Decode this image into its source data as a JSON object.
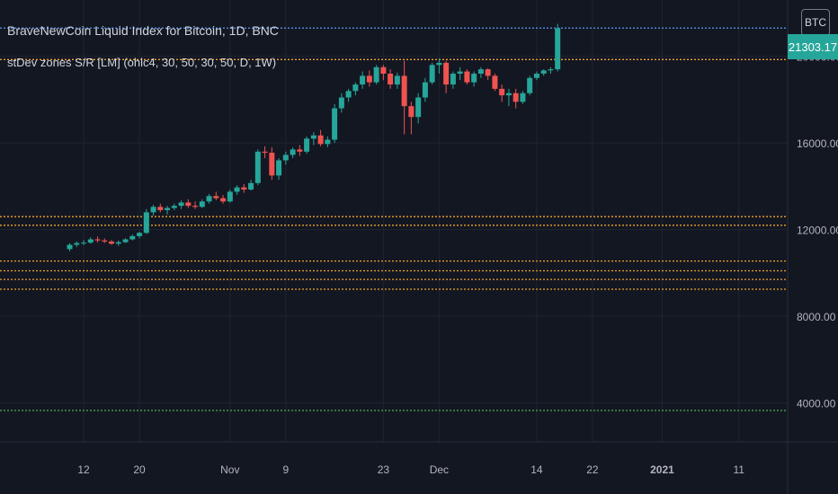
{
  "header": {
    "title": "BraveNewCoin Liquid Index for Bitcoin, 1D, BNC",
    "indicator": "stDev zones S/R [LM] (ohlc4, 30, 50, 30, 50, D, 1W)",
    "symbol_button": "BTC",
    "last_price_label": "21303.17"
  },
  "colors": {
    "background": "#131722",
    "grid": "#1f2430",
    "up": "#26a69a",
    "down": "#ef5350",
    "sr_orange": "#f0a22b",
    "sr_green": "#4caf50",
    "sr_blue": "#5b9cf6",
    "axis_text": "#b2b5be"
  },
  "chart_data": {
    "type": "candlestick",
    "y_axis": {
      "ticks": [
        4000,
        8000,
        12000,
        16000,
        20000
      ],
      "tick_labels": [
        "4000.00",
        "8000.00",
        "12000.00",
        "16000.00",
        "20000.00"
      ],
      "range": [
        2200,
        22600
      ]
    },
    "x_axis": {
      "tick_labels": [
        "12",
        "20",
        "Nov",
        "9",
        "23",
        "Dec",
        "14",
        "22",
        "2021",
        "11"
      ],
      "tick_index": [
        2,
        10,
        23,
        31,
        45,
        53,
        67,
        75,
        85,
        96
      ],
      "range_index": [
        -10,
        103
      ],
      "bold_labels": [
        "2021"
      ]
    },
    "grid": true,
    "candles": [
      [
        11100,
        11380,
        11000,
        11300
      ],
      [
        11300,
        11460,
        11200,
        11380
      ],
      [
        11380,
        11520,
        11280,
        11400
      ],
      [
        11400,
        11650,
        11350,
        11550
      ],
      [
        11550,
        11680,
        11400,
        11500
      ],
      [
        11500,
        11600,
        11380,
        11450
      ],
      [
        11450,
        11520,
        11300,
        11350
      ],
      [
        11350,
        11500,
        11250,
        11420
      ],
      [
        11420,
        11600,
        11380,
        11550
      ],
      [
        11550,
        11780,
        11500,
        11700
      ],
      [
        11700,
        11900,
        11600,
        11850
      ],
      [
        11850,
        12950,
        11800,
        12800
      ],
      [
        12800,
        13150,
        12650,
        13050
      ],
      [
        13050,
        13200,
        12800,
        12900
      ],
      [
        12900,
        13100,
        12700,
        13000
      ],
      [
        13000,
        13200,
        12900,
        13100
      ],
      [
        13100,
        13350,
        12950,
        13250
      ],
      [
        13250,
        13400,
        13000,
        13100
      ],
      [
        13100,
        13300,
        12950,
        13050
      ],
      [
        13050,
        13400,
        13000,
        13300
      ],
      [
        13300,
        13650,
        13200,
        13550
      ],
      [
        13550,
        13750,
        13350,
        13450
      ],
      [
        13450,
        13600,
        13200,
        13300
      ],
      [
        13300,
        13850,
        13250,
        13750
      ],
      [
        13750,
        14050,
        13600,
        13950
      ],
      [
        13950,
        14100,
        13700,
        13850
      ],
      [
        13850,
        14300,
        13800,
        14150
      ],
      [
        14150,
        15700,
        14050,
        15600
      ],
      [
        15600,
        15850,
        15300,
        15550
      ],
      [
        15550,
        15800,
        14300,
        14500
      ],
      [
        14500,
        15300,
        14300,
        15200
      ],
      [
        15200,
        15600,
        15000,
        15450
      ],
      [
        15450,
        15800,
        15300,
        15700
      ],
      [
        15700,
        15900,
        15400,
        15600
      ],
      [
        15600,
        16300,
        15500,
        16200
      ],
      [
        16200,
        16500,
        15900,
        16350
      ],
      [
        16350,
        16600,
        15850,
        15950
      ],
      [
        15950,
        16300,
        15800,
        16150
      ],
      [
        16150,
        17800,
        16000,
        17600
      ],
      [
        17600,
        18300,
        17400,
        18100
      ],
      [
        18100,
        18500,
        17900,
        18400
      ],
      [
        18400,
        18800,
        18200,
        18700
      ],
      [
        18700,
        19300,
        18500,
        19100
      ],
      [
        19100,
        19350,
        18600,
        18800
      ],
      [
        18800,
        19600,
        18700,
        19500
      ],
      [
        19500,
        19600,
        18900,
        19200
      ],
      [
        19200,
        19400,
        18500,
        18700
      ],
      [
        18700,
        19250,
        18500,
        19100
      ],
      [
        19100,
        19800,
        16400,
        17700
      ],
      [
        17700,
        17900,
        16400,
        17200
      ],
      [
        17200,
        18300,
        16900,
        18100
      ],
      [
        18100,
        19000,
        17900,
        18800
      ],
      [
        18800,
        19700,
        18700,
        19600
      ],
      [
        19600,
        19900,
        19200,
        19700
      ],
      [
        19700,
        19800,
        18300,
        18700
      ],
      [
        18700,
        19300,
        18500,
        19200
      ],
      [
        19200,
        19500,
        18900,
        19300
      ],
      [
        19300,
        19400,
        18700,
        18800
      ],
      [
        18800,
        19300,
        18600,
        19200
      ],
      [
        19200,
        19500,
        19000,
        19400
      ],
      [
        19400,
        19450,
        18900,
        19100
      ],
      [
        19100,
        19200,
        18400,
        18500
      ],
      [
        18500,
        18700,
        17900,
        18200
      ],
      [
        18200,
        18500,
        17700,
        18300
      ],
      [
        18300,
        18500,
        17600,
        17900
      ],
      [
        17900,
        18400,
        17800,
        18300
      ],
      [
        18300,
        19100,
        18200,
        19000
      ],
      [
        19000,
        19300,
        18900,
        19200
      ],
      [
        19200,
        19400,
        19100,
        19350
      ],
      [
        19350,
        19500,
        19200,
        19400
      ],
      [
        19400,
        21500,
        19300,
        21303
      ]
    ],
    "last_price": 21303.17,
    "sr_lines": [
      {
        "value": 21303.17,
        "color": "blue"
      },
      {
        "value": 19850,
        "color": "orange"
      },
      {
        "value": 12600,
        "color": "orange"
      },
      {
        "value": 12200,
        "color": "orange"
      },
      {
        "value": 10550,
        "color": "orange"
      },
      {
        "value": 10100,
        "color": "orange"
      },
      {
        "value": 9700,
        "color": "orange"
      },
      {
        "value": 9250,
        "color": "orange"
      },
      {
        "value": 3650,
        "color": "green"
      }
    ]
  }
}
